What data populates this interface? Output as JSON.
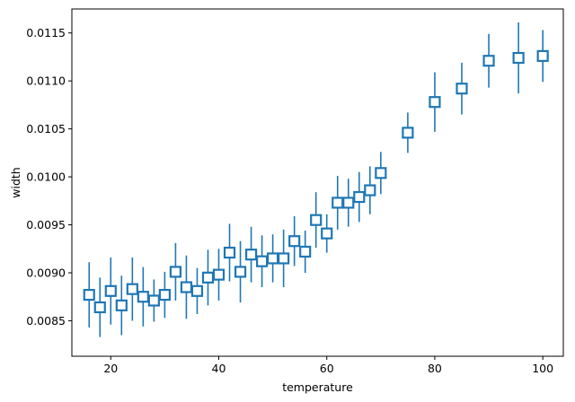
{
  "chart_data": {
    "type": "scatter",
    "title": "",
    "xlabel": "temperature",
    "ylabel": "width",
    "xlim": [
      12.8,
      103.8
    ],
    "ylim": [
      0.00813,
      0.01175
    ],
    "xticks": [
      20,
      40,
      60,
      80,
      100
    ],
    "yticks": [
      0.0085,
      0.009,
      0.0095,
      0.01,
      0.0105,
      0.011,
      0.0115
    ],
    "ytick_labels": [
      "0.0085",
      "0.0090",
      "0.0095",
      "0.0100",
      "0.0105",
      "0.0110",
      "0.0115"
    ],
    "grid": false,
    "marker": "open-square",
    "color": "#1f77b4",
    "series": [
      {
        "points": [
          {
            "x": 16,
            "y": 0.00877,
            "err": 0.00034
          },
          {
            "x": 18,
            "y": 0.00864,
            "err": 0.00031
          },
          {
            "x": 20,
            "y": 0.00881,
            "err": 0.00035
          },
          {
            "x": 22,
            "y": 0.00866,
            "err": 0.00031
          },
          {
            "x": 24,
            "y": 0.00883,
            "err": 0.00033
          },
          {
            "x": 26,
            "y": 0.00875,
            "err": 0.00031
          },
          {
            "x": 28,
            "y": 0.00871,
            "err": 0.00022
          },
          {
            "x": 30,
            "y": 0.00877,
            "err": 0.00024
          },
          {
            "x": 32,
            "y": 0.00901,
            "err": 0.0003
          },
          {
            "x": 34,
            "y": 0.00885,
            "err": 0.00033
          },
          {
            "x": 36,
            "y": 0.00881,
            "err": 0.00024
          },
          {
            "x": 38,
            "y": 0.00895,
            "err": 0.00029
          },
          {
            "x": 40,
            "y": 0.00898,
            "err": 0.00027
          },
          {
            "x": 42,
            "y": 0.00921,
            "err": 0.0003
          },
          {
            "x": 44,
            "y": 0.00901,
            "err": 0.00032
          },
          {
            "x": 46,
            "y": 0.00919,
            "err": 0.00029
          },
          {
            "x": 48,
            "y": 0.00912,
            "err": 0.00027
          },
          {
            "x": 50,
            "y": 0.00915,
            "err": 0.00025
          },
          {
            "x": 52,
            "y": 0.00915,
            "err": 0.0003
          },
          {
            "x": 54,
            "y": 0.00933,
            "err": 0.00026
          },
          {
            "x": 56,
            "y": 0.00922,
            "err": 0.00022
          },
          {
            "x": 58,
            "y": 0.00955,
            "err": 0.00029
          },
          {
            "x": 60,
            "y": 0.00941,
            "err": 0.0002
          },
          {
            "x": 62,
            "y": 0.00973,
            "err": 0.00028
          },
          {
            "x": 64,
            "y": 0.00973,
            "err": 0.00025
          },
          {
            "x": 66,
            "y": 0.00979,
            "err": 0.00026
          },
          {
            "x": 68,
            "y": 0.00986,
            "err": 0.00025
          },
          {
            "x": 70,
            "y": 0.01004,
            "err": 0.00022
          },
          {
            "x": 75,
            "y": 0.01046,
            "err": 0.00021
          },
          {
            "x": 80,
            "y": 0.01078,
            "err": 0.00031
          },
          {
            "x": 85,
            "y": 0.01092,
            "err": 0.00027
          },
          {
            "x": 90,
            "y": 0.01121,
            "err": 0.00028
          },
          {
            "x": 95.5,
            "y": 0.01124,
            "err": 0.00037
          },
          {
            "x": 100,
            "y": 0.01126,
            "err": 0.00027
          }
        ]
      }
    ]
  }
}
